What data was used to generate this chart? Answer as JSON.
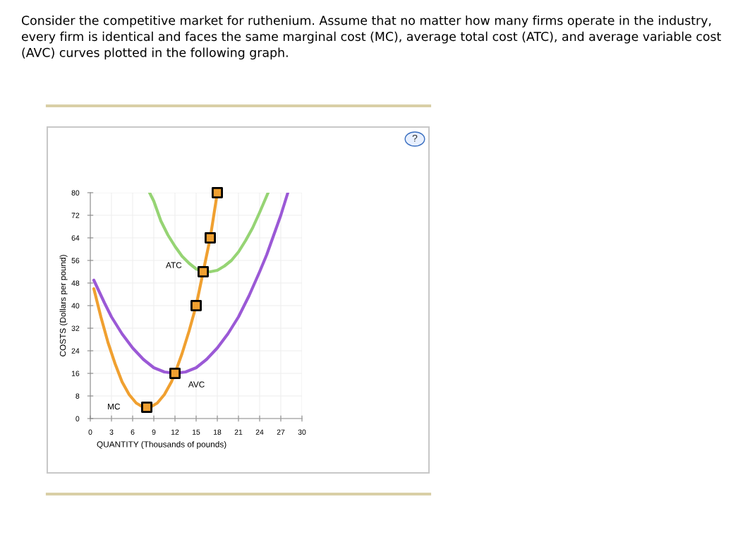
{
  "chart_data": {
    "type": "line",
    "title": "Consider the competitive market for ruthenium. Assume that no matter how many firms operate in the industry, every firm is identical and faces the same marginal cost (MC), average total cost (ATC), and average variable cost (AVC) curves plotted in the following graph.",
    "xlabel": "QUANTITY (Thousands of pounds)",
    "ylabel": "COSTS (Dollars per pound)",
    "xlim": [
      0,
      30
    ],
    "ylim": [
      0,
      80
    ],
    "xticks": [
      0,
      3,
      6,
      9,
      12,
      15,
      18,
      21,
      24,
      27,
      30
    ],
    "yticks": [
      0,
      8,
      16,
      24,
      32,
      40,
      48,
      56,
      64,
      72,
      80
    ],
    "grid": true,
    "line_style": "solid",
    "series": [
      {
        "name": "ATC",
        "color": "#96d474",
        "x": [
          8.4,
          9,
          10,
          11,
          12,
          13,
          14,
          15,
          16,
          17,
          18,
          19,
          20,
          21,
          22,
          23,
          24,
          25.2
        ],
        "values": [
          80,
          77,
          70,
          65,
          61,
          57.5,
          55,
          53,
          52,
          52,
          52.5,
          54,
          56,
          59,
          63,
          67.5,
          73,
          80
        ]
      },
      {
        "name": "AVC",
        "color": "#9b59d6",
        "x": [
          0.5,
          2,
          3,
          4.5,
          6,
          7.5,
          9,
          10.5,
          12,
          13.5,
          15,
          16.5,
          18,
          19.5,
          21,
          22.5,
          24,
          25,
          26,
          27,
          28
        ],
        "values": [
          49,
          41,
          36,
          30,
          25,
          21,
          18,
          16.5,
          16,
          16.5,
          18,
          21,
          25,
          30,
          36,
          43.5,
          52,
          58,
          65,
          72,
          80
        ]
      },
      {
        "name": "MC",
        "color": "#f0a030",
        "x": [
          0.5,
          1.5,
          2.5,
          3.5,
          4.5,
          5.5,
          6.5,
          7.5,
          8,
          8.5,
          9.5,
          10.5,
          11.5,
          12,
          13,
          14,
          15,
          16,
          17,
          18
        ],
        "values": [
          46,
          36,
          27,
          19.5,
          13,
          8.5,
          5.5,
          4,
          4,
          4,
          5.5,
          8.5,
          13,
          16,
          23,
          31,
          40,
          52,
          64,
          80
        ]
      },
      {
        "type": "scatter",
        "marker": "square",
        "color": "#f0a030",
        "x": [
          8,
          12,
          15,
          16,
          17,
          18
        ],
        "values": [
          4,
          16,
          40,
          52,
          64,
          80
        ]
      }
    ],
    "annotations": [
      "?"
    ]
  }
}
